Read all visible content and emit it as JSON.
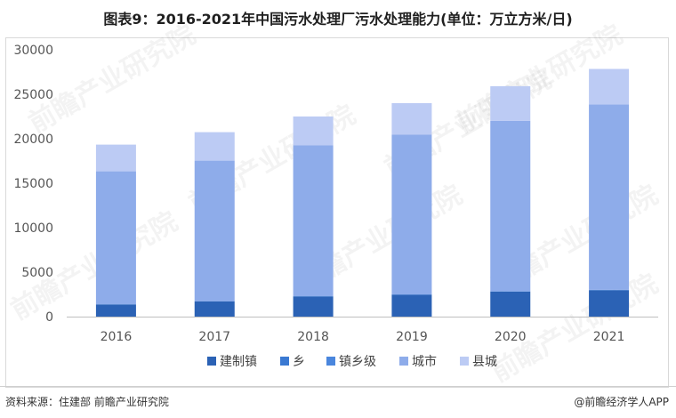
{
  "title": "图表9：2016-2021年中国污水处理厂污水处理能力(单位：万立方米/日)",
  "source": "资料来源：住建部 前瞻产业研究院",
  "brand": "@前瞻经济学人APP",
  "watermark": "前瞻产业研究院",
  "chart_data": {
    "type": "bar",
    "stacked": true,
    "categories": [
      "2016",
      "2017",
      "2018",
      "2019",
      "2020",
      "2021"
    ],
    "ylim": [
      0,
      30000
    ],
    "yticks": [
      0,
      5000,
      10000,
      15000,
      20000,
      25000,
      30000
    ],
    "legend_position": "bottom",
    "grid": false,
    "series": [
      {
        "name": "建制镇",
        "color": "#2b62b5",
        "values": [
          1350,
          1700,
          2250,
          2450,
          2800,
          2950
        ]
      },
      {
        "name": "乡",
        "color": "#3a79d2",
        "values": [
          20,
          20,
          25,
          25,
          30,
          30
        ]
      },
      {
        "name": "镇乡级",
        "color": "#4a86dd",
        "values": [
          20,
          20,
          25,
          25,
          30,
          30
        ]
      },
      {
        "name": "城市",
        "color": "#8eacea",
        "values": [
          14950,
          15800,
          16950,
          17950,
          19150,
          20850
        ]
      },
      {
        "name": "县城",
        "color": "#bccbf4",
        "values": [
          3000,
          3200,
          3250,
          3550,
          3900,
          3990
        ]
      }
    ]
  }
}
